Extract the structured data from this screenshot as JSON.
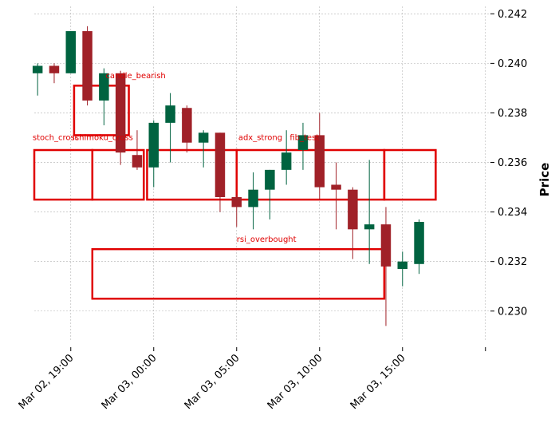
{
  "chart_data": {
    "type": "candlestick",
    "ylabel": "Price",
    "ylim": [
      0.2288,
      0.2423
    ],
    "y_ticks": [
      0.23,
      0.232,
      0.234,
      0.236,
      0.238,
      0.24,
      0.242
    ],
    "y_tick_labels": [
      "0.230",
      "0.232",
      "0.234",
      "0.236",
      "0.238",
      "0.240",
      "0.242"
    ],
    "x_ticks": [
      {
        "index": 2,
        "label": "Mar 02, 19:00"
      },
      {
        "index": 7,
        "label": "Mar 03, 00:00"
      },
      {
        "index": 12,
        "label": "Mar 03, 05:00"
      },
      {
        "index": 17,
        "label": "Mar 03, 10:00"
      },
      {
        "index": 22,
        "label": "Mar 03, 15:00"
      },
      {
        "index": 27,
        "label": ""
      }
    ],
    "x_range": [
      -0.2,
      27.3
    ],
    "grid": true,
    "colors": {
      "up": "#006340",
      "down": "#a02128",
      "annotation": "#e00000",
      "grid": "#b0b0b0"
    },
    "candles": [
      {
        "o": 0.2396,
        "h": 0.24,
        "l": 0.2387,
        "c": 0.2399
      },
      {
        "o": 0.2399,
        "h": 0.24,
        "l": 0.2392,
        "c": 0.2396
      },
      {
        "o": 0.2396,
        "h": 0.2413,
        "l": 0.2396,
        "c": 0.2413
      },
      {
        "o": 0.2413,
        "h": 0.2415,
        "l": 0.2383,
        "c": 0.2385
      },
      {
        "o": 0.2385,
        "h": 0.2398,
        "l": 0.2375,
        "c": 0.2396
      },
      {
        "o": 0.2396,
        "h": 0.2397,
        "l": 0.2359,
        "c": 0.2364
      },
      {
        "o": 0.2363,
        "h": 0.2373,
        "l": 0.2357,
        "c": 0.2358
      },
      {
        "o": 0.2358,
        "h": 0.2377,
        "l": 0.235,
        "c": 0.2376
      },
      {
        "o": 0.2376,
        "h": 0.2388,
        "l": 0.236,
        "c": 0.2383
      },
      {
        "o": 0.2382,
        "h": 0.2383,
        "l": 0.2364,
        "c": 0.2368
      },
      {
        "o": 0.2368,
        "h": 0.2373,
        "l": 0.2358,
        "c": 0.2372
      },
      {
        "o": 0.2372,
        "h": 0.2372,
        "l": 0.234,
        "c": 0.2346
      },
      {
        "o": 0.2346,
        "h": 0.2347,
        "l": 0.2334,
        "c": 0.2342
      },
      {
        "o": 0.2342,
        "h": 0.2356,
        "l": 0.2333,
        "c": 0.2349
      },
      {
        "o": 0.2349,
        "h": 0.2357,
        "l": 0.2337,
        "c": 0.2357
      },
      {
        "o": 0.2357,
        "h": 0.2373,
        "l": 0.2351,
        "c": 0.2364
      },
      {
        "o": 0.2365,
        "h": 0.2376,
        "l": 0.2357,
        "c": 0.2371
      },
      {
        "o": 0.2371,
        "h": 0.238,
        "l": 0.2345,
        "c": 0.235
      },
      {
        "o": 0.2351,
        "h": 0.236,
        "l": 0.2333,
        "c": 0.2349
      },
      {
        "o": 0.2349,
        "h": 0.235,
        "l": 0.2321,
        "c": 0.2333
      },
      {
        "o": 0.2333,
        "h": 0.2361,
        "l": 0.2319,
        "c": 0.2335
      },
      {
        "o": 0.2335,
        "h": 0.2342,
        "l": 0.2294,
        "c": 0.2318
      },
      {
        "o": 0.2317,
        "h": 0.2324,
        "l": 0.231,
        "c": 0.232
      },
      {
        "o": 0.2319,
        "h": 0.2337,
        "l": 0.2315,
        "c": 0.2336
      }
    ],
    "annotations": [
      {
        "label": "candle_bearish",
        "x0": 2.2,
        "x1": 5.5,
        "y0": 0.2371,
        "y1": 0.2391,
        "label_x": 4.1,
        "label_y": 0.2394
      },
      {
        "label": "stoch_cross",
        "x0": -0.2,
        "x1": 3.3,
        "y0": 0.2345,
        "y1": 0.2365,
        "label_x": -0.3,
        "label_y": 0.2369
      },
      {
        "label": "ichimoku_cross",
        "x0": 3.3,
        "x1": 6.4,
        "y0": 0.2345,
        "y1": 0.2365,
        "label_x": 2.1,
        "label_y": 0.2369
      },
      {
        "label": "adx_strong",
        "x0": 6.6,
        "x1": 12.0,
        "y0": 0.2345,
        "y1": 0.2365,
        "label_x": 12.1,
        "label_y": 0.2369
      },
      {
        "label": "fib_test",
        "x0": 12.0,
        "x1": 20.9,
        "y0": 0.2345,
        "y1": 0.2365,
        "label_x": 15.2,
        "label_y": 0.2369
      },
      {
        "label": "",
        "x0": 20.9,
        "x1": 24.0,
        "y0": 0.2345,
        "y1": 0.2365
      },
      {
        "label": "rsi_overbought",
        "x0": 3.3,
        "x1": 20.9,
        "y0": 0.2305,
        "y1": 0.2325,
        "label_x": 12.0,
        "label_y": 0.2328
      }
    ]
  }
}
